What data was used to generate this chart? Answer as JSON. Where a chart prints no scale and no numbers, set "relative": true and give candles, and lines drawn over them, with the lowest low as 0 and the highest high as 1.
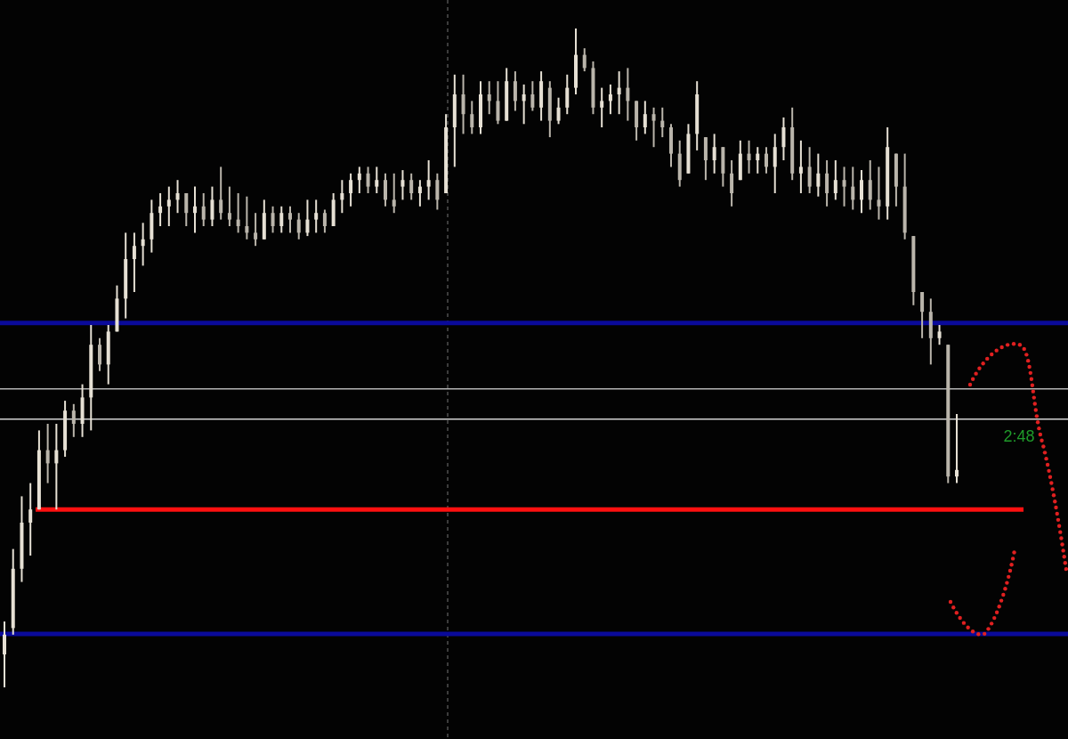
{
  "chart_data": {
    "type": "candlestick",
    "relative": true,
    "categories": [
      null,
      null,
      null,
      null,
      null,
      null,
      null,
      null,
      null,
      null,
      null,
      null,
      null,
      null,
      null,
      null,
      null,
      null,
      null,
      null,
      null,
      null,
      null,
      null,
      null,
      null,
      null,
      null,
      null,
      null,
      null,
      null,
      null,
      null,
      null,
      null,
      null,
      null,
      null,
      null,
      null,
      null,
      null,
      null,
      null,
      null,
      null,
      null,
      null,
      null,
      null,
      null,
      null,
      null,
      null,
      null,
      null,
      null,
      null,
      null,
      null,
      null,
      null,
      null,
      null,
      null,
      null,
      null,
      null,
      null,
      null,
      null,
      null,
      null,
      null,
      null,
      null,
      null,
      null,
      null,
      null,
      null,
      null,
      null,
      null,
      null,
      null,
      null,
      null,
      null,
      null,
      null,
      null,
      null,
      null,
      null,
      null,
      null,
      null,
      null,
      null,
      null,
      null,
      null,
      null,
      null,
      null,
      null,
      null,
      null,
      null
    ],
    "ohlc": [
      [
        0.05,
        0.1,
        0.0,
        0.08
      ],
      [
        0.09,
        0.21,
        0.08,
        0.18
      ],
      [
        0.18,
        0.29,
        0.16,
        0.25
      ],
      [
        0.25,
        0.31,
        0.2,
        0.27
      ],
      [
        0.27,
        0.39,
        0.27,
        0.36
      ],
      [
        0.36,
        0.4,
        0.31,
        0.34
      ],
      [
        0.34,
        0.4,
        0.27,
        0.36
      ],
      [
        0.36,
        0.435,
        0.35,
        0.42
      ],
      [
        0.42,
        0.43,
        0.38,
        0.4
      ],
      [
        0.4,
        0.46,
        0.38,
        0.44
      ],
      [
        0.44,
        0.55,
        0.39,
        0.52
      ],
      [
        0.52,
        0.53,
        0.48,
        0.49
      ],
      [
        0.49,
        0.55,
        0.46,
        0.54
      ],
      [
        0.54,
        0.61,
        0.54,
        0.59
      ],
      [
        0.59,
        0.69,
        0.56,
        0.65
      ],
      [
        0.65,
        0.69,
        0.6,
        0.67
      ],
      [
        0.67,
        0.705,
        0.64,
        0.68
      ],
      [
        0.68,
        0.74,
        0.66,
        0.72
      ],
      [
        0.72,
        0.75,
        0.7,
        0.73
      ],
      [
        0.73,
        0.76,
        0.7,
        0.74
      ],
      [
        0.74,
        0.77,
        0.72,
        0.75
      ],
      [
        0.75,
        0.75,
        0.7,
        0.72
      ],
      [
        0.72,
        0.76,
        0.69,
        0.73
      ],
      [
        0.73,
        0.75,
        0.7,
        0.71
      ],
      [
        0.71,
        0.76,
        0.7,
        0.74
      ],
      [
        0.74,
        0.79,
        0.71,
        0.72
      ],
      [
        0.72,
        0.76,
        0.7,
        0.71
      ],
      [
        0.71,
        0.75,
        0.69,
        0.7
      ],
      [
        0.7,
        0.745,
        0.68,
        0.69
      ],
      [
        0.69,
        0.72,
        0.67,
        0.68
      ],
      [
        0.68,
        0.74,
        0.68,
        0.72
      ],
      [
        0.72,
        0.73,
        0.69,
        0.7
      ],
      [
        0.7,
        0.73,
        0.69,
        0.72
      ],
      [
        0.72,
        0.73,
        0.69,
        0.71
      ],
      [
        0.71,
        0.72,
        0.68,
        0.69
      ],
      [
        0.69,
        0.74,
        0.685,
        0.71
      ],
      [
        0.71,
        0.74,
        0.69,
        0.72
      ],
      [
        0.72,
        0.725,
        0.69,
        0.7
      ],
      [
        0.7,
        0.75,
        0.7,
        0.74
      ],
      [
        0.74,
        0.77,
        0.72,
        0.75
      ],
      [
        0.75,
        0.78,
        0.73,
        0.77
      ],
      [
        0.77,
        0.79,
        0.75,
        0.78
      ],
      [
        0.78,
        0.79,
        0.75,
        0.76
      ],
      [
        0.76,
        0.79,
        0.75,
        0.77
      ],
      [
        0.77,
        0.78,
        0.73,
        0.74
      ],
      [
        0.74,
        0.78,
        0.72,
        0.73
      ],
      [
        0.76,
        0.785,
        0.74,
        0.77
      ],
      [
        0.77,
        0.78,
        0.74,
        0.75
      ],
      [
        0.75,
        0.77,
        0.73,
        0.76
      ],
      [
        0.76,
        0.8,
        0.74,
        0.77
      ],
      [
        0.77,
        0.78,
        0.725,
        0.74
      ],
      [
        0.75,
        0.87,
        0.75,
        0.85
      ],
      [
        0.85,
        0.93,
        0.79,
        0.9
      ],
      [
        0.9,
        0.93,
        0.84,
        0.87
      ],
      [
        0.87,
        0.89,
        0.84,
        0.85
      ],
      [
        0.85,
        0.92,
        0.84,
        0.9
      ],
      [
        0.9,
        0.92,
        0.87,
        0.89
      ],
      [
        0.89,
        0.92,
        0.855,
        0.86
      ],
      [
        0.86,
        0.94,
        0.86,
        0.92
      ],
      [
        0.92,
        0.935,
        0.875,
        0.89
      ],
      [
        0.89,
        0.915,
        0.855,
        0.9
      ],
      [
        0.9,
        0.92,
        0.875,
        0.88
      ],
      [
        0.88,
        0.935,
        0.86,
        0.92
      ],
      [
        0.91,
        0.92,
        0.835,
        0.86
      ],
      [
        0.86,
        0.895,
        0.855,
        0.88
      ],
      [
        0.88,
        0.93,
        0.87,
        0.91
      ],
      [
        0.91,
        1.0,
        0.9,
        0.96
      ],
      [
        0.96,
        0.97,
        0.935,
        0.94
      ],
      [
        0.94,
        0.95,
        0.87,
        0.88
      ],
      [
        0.88,
        0.91,
        0.85,
        0.89
      ],
      [
        0.89,
        0.915,
        0.87,
        0.9
      ],
      [
        0.9,
        0.935,
        0.87,
        0.91
      ],
      [
        0.91,
        0.94,
        0.86,
        0.89
      ],
      [
        0.89,
        0.89,
        0.83,
        0.85
      ],
      [
        0.85,
        0.89,
        0.84,
        0.87
      ],
      [
        0.87,
        0.88,
        0.82,
        0.86
      ],
      [
        0.86,
        0.88,
        0.835,
        0.85
      ],
      [
        0.85,
        0.855,
        0.79,
        0.81
      ],
      [
        0.81,
        0.83,
        0.76,
        0.77
      ],
      [
        0.78,
        0.855,
        0.78,
        0.84
      ],
      [
        0.84,
        0.92,
        0.815,
        0.9
      ],
      [
        0.835,
        0.835,
        0.77,
        0.8
      ],
      [
        0.8,
        0.84,
        0.78,
        0.82
      ],
      [
        0.82,
        0.82,
        0.76,
        0.78
      ],
      [
        0.78,
        0.8,
        0.73,
        0.75
      ],
      [
        0.77,
        0.83,
        0.77,
        0.81
      ],
      [
        0.81,
        0.83,
        0.78,
        0.8
      ],
      [
        0.8,
        0.82,
        0.78,
        0.81
      ],
      [
        0.81,
        0.82,
        0.78,
        0.79
      ],
      [
        0.79,
        0.84,
        0.75,
        0.82
      ],
      [
        0.82,
        0.865,
        0.8,
        0.85
      ],
      [
        0.85,
        0.88,
        0.77,
        0.78
      ],
      [
        0.78,
        0.83,
        0.75,
        0.79
      ],
      [
        0.79,
        0.82,
        0.75,
        0.76
      ],
      [
        0.76,
        0.81,
        0.745,
        0.78
      ],
      [
        0.78,
        0.8,
        0.73,
        0.75
      ],
      [
        0.75,
        0.8,
        0.74,
        0.77
      ],
      [
        0.77,
        0.79,
        0.73,
        0.76
      ],
      [
        0.76,
        0.79,
        0.725,
        0.74
      ],
      [
        0.74,
        0.785,
        0.72,
        0.77
      ],
      [
        0.77,
        0.8,
        0.725,
        0.74
      ],
      [
        0.74,
        0.79,
        0.71,
        0.73
      ],
      [
        0.73,
        0.85,
        0.71,
        0.82
      ],
      [
        0.81,
        0.81,
        0.73,
        0.76
      ],
      [
        0.76,
        0.81,
        0.68,
        0.69
      ],
      [
        0.685,
        0.685,
        0.58,
        0.6
      ],
      [
        0.6,
        0.6,
        0.53,
        0.57
      ],
      [
        0.57,
        0.59,
        0.49,
        0.53
      ],
      [
        0.53,
        0.55,
        0.52,
        0.54
      ],
      [
        0.52,
        0.52,
        0.31,
        0.32
      ],
      [
        0.32,
        0.415,
        0.31,
        0.33
      ]
    ],
    "colors": [
      "#e6e0d4",
      "#e6e0d4",
      "#e6e0d4",
      "#e6e0d4",
      "#e6e0d4",
      "#bab5ab",
      "#e6e0d4",
      "#e6e0d4",
      "#bab5ab",
      "#e6e0d4",
      "#e6e0d4",
      "#bab5ab",
      "#e6e0d4",
      "#e6e0d4",
      "#e6e0d4",
      "#e6e0d4",
      "#e6e0d4",
      "#e6e0d4",
      "#e6e0d4",
      "#e6e0d4",
      "#e6e0d4",
      "#bab5ab",
      "#e6e0d4",
      "#bab5ab",
      "#e6e0d4",
      "#bab5ab",
      "#bab5ab",
      "#bab5ab",
      "#bab5ab",
      "#bab5ab",
      "#e6e0d4",
      "#bab5ab",
      "#e6e0d4",
      "#bab5ab",
      "#bab5ab",
      "#e6e0d4",
      "#e6e0d4",
      "#bab5ab",
      "#e6e0d4",
      "#e6e0d4",
      "#e6e0d4",
      "#e6e0d4",
      "#bab5ab",
      "#e6e0d4",
      "#bab5ab",
      "#bab5ab",
      "#e6e0d4",
      "#bab5ab",
      "#e6e0d4",
      "#e6e0d4",
      "#bab5ab",
      "#e6e0d4",
      "#e6e0d4",
      "#bab5ab",
      "#bab5ab",
      "#e6e0d4",
      "#bab5ab",
      "#bab5ab",
      "#e6e0d4",
      "#bab5ab",
      "#e6e0d4",
      "#bab5ab",
      "#e6e0d4",
      "#bab5ab",
      "#e6e0d4",
      "#e6e0d4",
      "#e6e0d4",
      "#bab5ab",
      "#bab5ab",
      "#e6e0d4",
      "#e6e0d4",
      "#e6e0d4",
      "#bab5ab",
      "#bab5ab",
      "#e6e0d4",
      "#bab5ab",
      "#bab5ab",
      "#bab5ab",
      "#bab5ab",
      "#e6e0d4",
      "#e6e0d4",
      "#bab5ab",
      "#e6e0d4",
      "#bab5ab",
      "#bab5ab",
      "#e6e0d4",
      "#bab5ab",
      "#e6e0d4",
      "#bab5ab",
      "#e6e0d4",
      "#e6e0d4",
      "#bab5ab",
      "#e6e0d4",
      "#bab5ab",
      "#e6e0d4",
      "#bab5ab",
      "#e6e0d4",
      "#bab5ab",
      "#bab5ab",
      "#e6e0d4",
      "#bab5ab",
      "#bab5ab",
      "#e6e0d4",
      "#bab5ab",
      "#bab5ab",
      "#bab5ab",
      "#bab5ab",
      "#bab5ab",
      "#e6e0d4",
      "#bab5ab",
      "#e6e0d4"
    ],
    "ref_lines": [
      {
        "axis": "y",
        "value": 0.553,
        "color": "#0a0a9a"
      },
      {
        "axis": "y",
        "value": 0.453,
        "color": "#b4b4b4"
      },
      {
        "axis": "y",
        "value": 0.407,
        "color": "#d2d2d2"
      },
      {
        "axis": "y",
        "value": 0.27,
        "color": "#ff1010"
      },
      {
        "axis": "y",
        "value": 0.081,
        "color": "#0a0a9a"
      }
    ],
    "annotations": [
      "2:48"
    ]
  }
}
